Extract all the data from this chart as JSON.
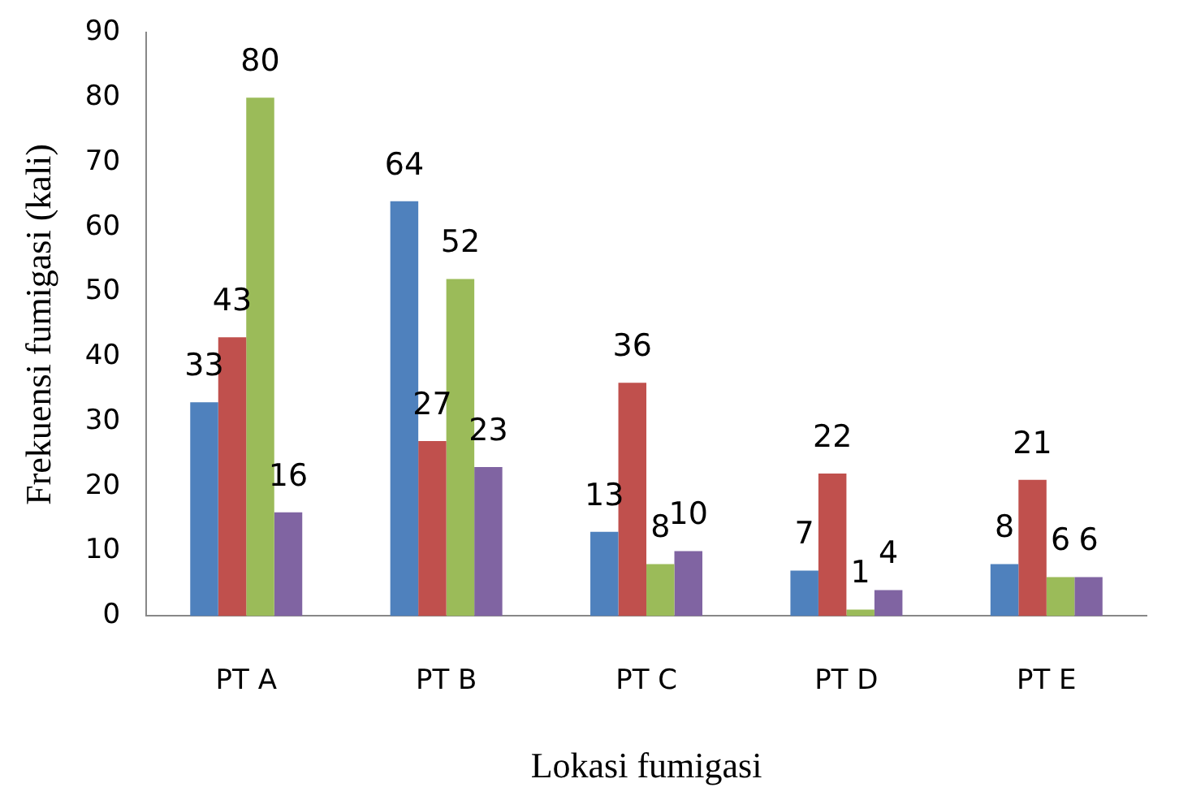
{
  "chart_data": {
    "type": "bar",
    "xlabel": "Lokasi fumigasi",
    "ylabel": "Frekuensi fumigasi (kali)",
    "categories": [
      "PT A",
      "PT B",
      "PT C",
      "PT D",
      "PT E"
    ],
    "series": [
      {
        "color": "#4f81bd",
        "values": [
          33,
          64,
          13,
          7,
          8
        ]
      },
      {
        "color": "#c0504d",
        "values": [
          43,
          27,
          36,
          22,
          21
        ]
      },
      {
        "color": "#9bbb59",
        "values": [
          80,
          52,
          8,
          1,
          6
        ]
      },
      {
        "color": "#8064a2",
        "values": [
          16,
          23,
          10,
          4,
          6
        ]
      }
    ],
    "ylim": [
      0,
      90
    ],
    "yticks": [
      0,
      10,
      20,
      30,
      40,
      50,
      60,
      70,
      80,
      90
    ],
    "grid": false,
    "legend": false,
    "data_labels": true
  }
}
